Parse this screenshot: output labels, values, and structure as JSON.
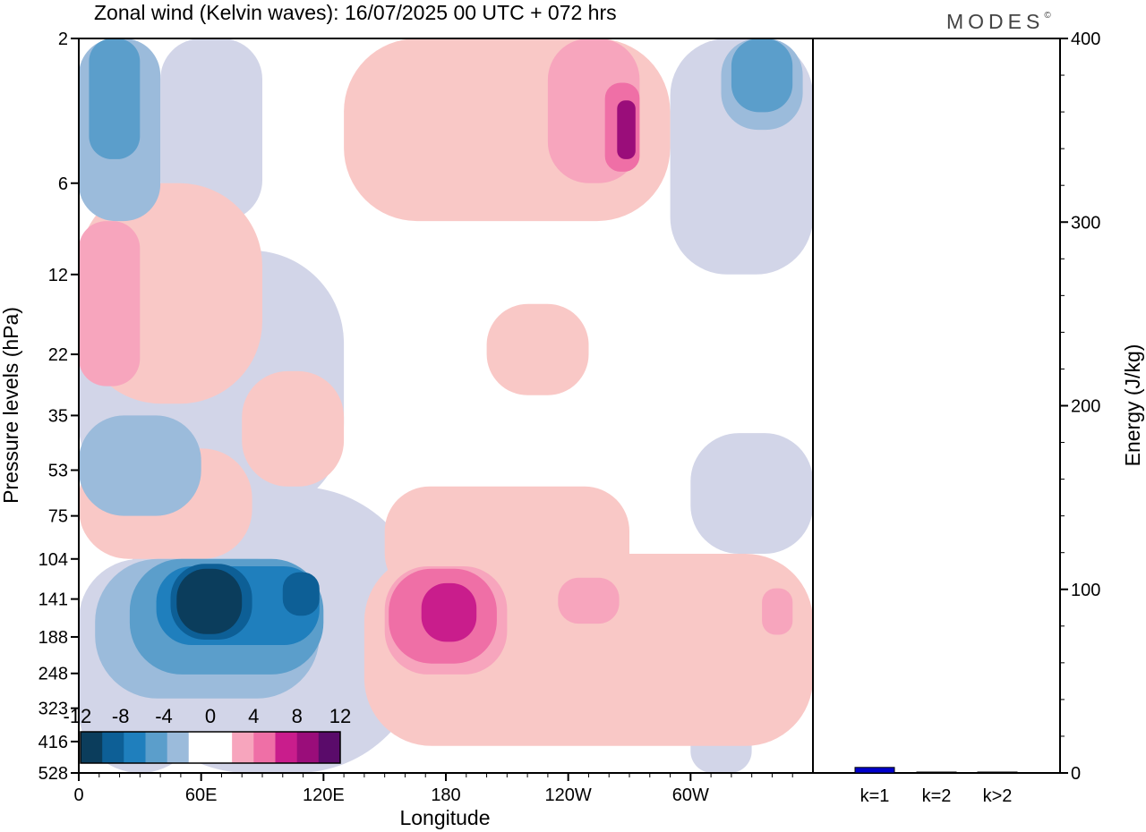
{
  "title": "Zonal wind (Kelvin waves):  16/07/2025  00 UTC  + 072 hrs",
  "brand": "MODES",
  "brand_mark": "©",
  "colors": {
    "c_-12": "#0b3d5c",
    "c_-10": "#0d5f96",
    "c_-8": "#1f7fbd",
    "c_-6": "#5b9ecb",
    "c_-4": "#9bbbdb",
    "c_-2": "#d2d5e8",
    "c_0": "#ffffff",
    "c_2": "#f9c8c6",
    "c_4": "#f7a5bd",
    "c_6": "#ef6fa6",
    "c_8": "#c91d8c",
    "c_10": "#9a0d7a",
    "c_12": "#5a0b6a",
    "bar": "#0000cc"
  },
  "chart_data": [
    {
      "type": "heatmap",
      "title": "Zonal wind (Kelvin waves):  16/07/2025  00 UTC  + 072 hrs",
      "xlabel": "Longitude",
      "ylabel": "Pressure levels (hPa)",
      "x_tick_labels": [
        "0",
        "60E",
        "120E",
        "180",
        "120W",
        "60W"
      ],
      "x_tick_lon_east": [
        0,
        60,
        120,
        180,
        240,
        300
      ],
      "xlim": [
        0,
        360
      ],
      "y_tick_labels": [
        "2",
        "6",
        "12",
        "22",
        "35",
        "53",
        "75",
        "104",
        "141",
        "188",
        "248",
        "323",
        "416",
        "528"
      ],
      "y_scale": "log (inverted)",
      "ylim": [
        528,
        2
      ],
      "colorbar_labels": [
        "-12",
        "-8",
        "-4",
        "0",
        "4",
        "8",
        "12"
      ],
      "colorbar_levels": [
        -12,
        -10,
        -8,
        -6,
        -4,
        -2,
        0,
        2,
        4,
        6,
        8,
        10,
        12
      ],
      "features": [
        {
          "level": -12,
          "lon": [
            52,
            80
          ],
          "p": [
            110,
            185
          ]
        },
        {
          "level": -8,
          "lon": [
            100,
            118
          ],
          "p": [
            110,
            160
          ]
        },
        {
          "level": -6,
          "lon": [
            40,
            75
          ],
          "p": [
            105,
            330
          ]
        },
        {
          "level": -4,
          "lon": [
            10,
            30
          ],
          "p": [
            2,
            6
          ]
        },
        {
          "level": -4,
          "lon": [
            330,
            350
          ],
          "p": [
            2,
            4
          ]
        },
        {
          "level": -2,
          "lon": [
            10,
            140
          ],
          "p": [
            12,
            60
          ]
        },
        {
          "level": 8,
          "lon": [
            170,
            195
          ],
          "p": [
            120,
            190
          ]
        },
        {
          "level": 6,
          "lon": [
            152,
            208
          ],
          "p": [
            110,
            248
          ]
        },
        {
          "level": 2,
          "lon": [
            140,
            360
          ],
          "p": [
            104,
            416
          ]
        },
        {
          "level": 2,
          "lon": [
            0,
            80
          ],
          "p": [
            40,
            104
          ]
        },
        {
          "level": 4,
          "lon": [
            0,
            35
          ],
          "p": [
            6,
            30
          ]
        },
        {
          "level": 6,
          "lon": [
            265,
            275
          ],
          "p": [
            3,
            6
          ]
        },
        {
          "level": 4,
          "lon": [
            210,
            250
          ],
          "p": [
            2,
            6
          ]
        },
        {
          "level": 2,
          "lon": [
            205,
            240
          ],
          "p": [
            15,
            30
          ]
        }
      ]
    },
    {
      "type": "bar",
      "categories": [
        "k=1",
        "k=2",
        "k>2"
      ],
      "values": [
        3,
        0.5,
        0.5
      ],
      "ylabel": "Energy (J/kg)",
      "ylim": [
        0,
        400
      ],
      "y_ticks": [
        0,
        100,
        200,
        300,
        400
      ]
    }
  ]
}
